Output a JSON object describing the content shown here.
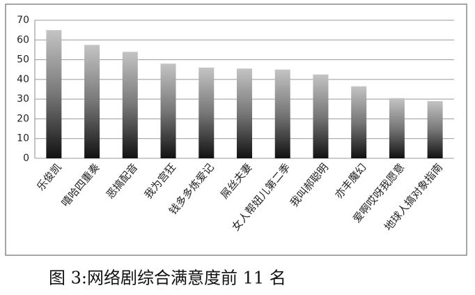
{
  "chart_data": {
    "type": "bar",
    "title": "图 3:网络剧综合满意度前 11 名",
    "categories": [
      "乐俊凯",
      "嘻哈四重奏",
      "恶搞配音",
      "我为宫狂",
      "钱多多炼爱记",
      "屌丝夫妻",
      "女人帮妞儿第二季",
      "我叫郝聪明",
      "亦丰魔幻",
      "爱啊哎呀我愿意",
      "地球人搞对象指南"
    ],
    "values": [
      65,
      57.5,
      54,
      48,
      46,
      45.5,
      45,
      42.5,
      36.5,
      30.5,
      29
    ],
    "ylim": [
      0,
      70
    ],
    "yticks": [
      0,
      10,
      20,
      30,
      40,
      50,
      60,
      70
    ],
    "grid": true
  }
}
